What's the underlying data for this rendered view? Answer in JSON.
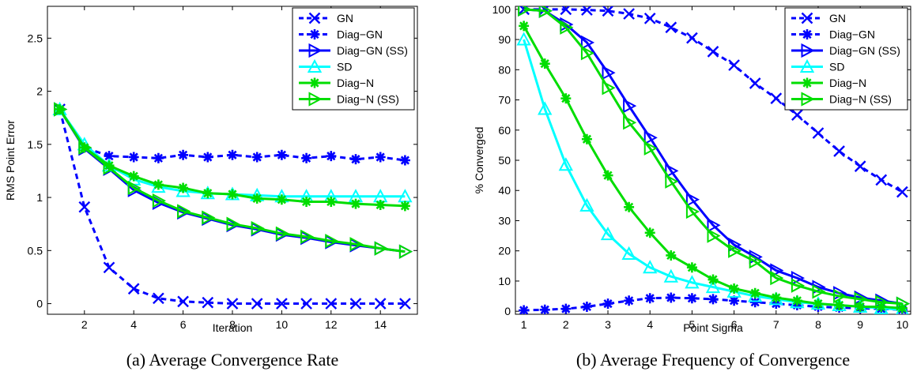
{
  "chart_data": [
    {
      "type": "line",
      "caption": "(a) Average Convergence Rate",
      "xlabel": "Iteration",
      "ylabel": "RMS Point Error",
      "xlim": [
        0.5,
        15.5
      ],
      "ylim": [
        -0.1,
        2.8
      ],
      "xticks": [
        "2",
        "4",
        "6",
        "8",
        "10",
        "12",
        "14"
      ],
      "xtick_values": [
        2,
        4,
        6,
        8,
        10,
        12,
        14
      ],
      "yticks": [
        "0",
        "0.5",
        "1",
        "1.5",
        "2",
        "2.5"
      ],
      "ytick_values": [
        0,
        0.5,
        1,
        1.5,
        2,
        2.5
      ],
      "grid": false,
      "legend_position": "top-right",
      "x": [
        1,
        2,
        3,
        4,
        5,
        6,
        7,
        8,
        9,
        10,
        11,
        12,
        13,
        14,
        15
      ],
      "series": [
        {
          "name": "GN",
          "color": "#0000ff",
          "dash": "dashed",
          "marker": "x",
          "values": [
            1.83,
            0.91,
            0.34,
            0.14,
            0.05,
            0.02,
            0.01,
            0.0,
            0.0,
            0.0,
            0.0,
            0.0,
            0.0,
            0.0,
            0.0
          ]
        },
        {
          "name": "Diag−GN",
          "color": "#0000ff",
          "dash": "dashed",
          "marker": "asterisk",
          "values": [
            1.83,
            1.47,
            1.39,
            1.38,
            1.37,
            1.4,
            1.38,
            1.4,
            1.38,
            1.4,
            1.37,
            1.39,
            1.36,
            1.38,
            1.35
          ]
        },
        {
          "name": "Diag−GN (SS)",
          "color": "#0000ff",
          "dash": "solid",
          "marker": "triangle-right",
          "values": [
            1.83,
            1.46,
            1.27,
            1.07,
            0.95,
            0.86,
            0.8,
            0.74,
            0.7,
            0.65,
            0.62,
            0.58,
            0.55,
            0.52,
            0.49
          ]
        },
        {
          "name": "SD",
          "color": "#00ffff",
          "dash": "solid",
          "marker": "triangle-up",
          "values": [
            1.83,
            1.5,
            1.3,
            1.17,
            1.1,
            1.06,
            1.04,
            1.03,
            1.02,
            1.01,
            1.01,
            1.01,
            1.01,
            1.01,
            1.01
          ]
        },
        {
          "name": "Diag−N",
          "color": "#00dd00",
          "dash": "solid",
          "marker": "asterisk",
          "values": [
            1.83,
            1.47,
            1.3,
            1.2,
            1.12,
            1.09,
            1.04,
            1.03,
            0.99,
            0.98,
            0.96,
            0.96,
            0.94,
            0.93,
            0.92
          ]
        },
        {
          "name": "Diag−N (SS)",
          "color": "#00dd00",
          "dash": "solid",
          "marker": "triangle-right",
          "values": [
            1.83,
            1.47,
            1.28,
            1.09,
            0.97,
            0.87,
            0.81,
            0.75,
            0.71,
            0.66,
            0.63,
            0.59,
            0.56,
            0.52,
            0.49
          ]
        }
      ]
    },
    {
      "type": "line",
      "caption": "(b) Average Frequency of Convergence",
      "xlabel": "Point Sigma",
      "ylabel": "% Converged",
      "xlim": [
        0.8,
        10.2
      ],
      "ylim": [
        -1,
        101
      ],
      "xticks": [
        "1",
        "2",
        "3",
        "4",
        "5",
        "6",
        "7",
        "8",
        "9",
        "10"
      ],
      "xtick_values": [
        1,
        2,
        3,
        4,
        5,
        6,
        7,
        8,
        9,
        10
      ],
      "yticks": [
        "0",
        "10",
        "20",
        "30",
        "40",
        "50",
        "60",
        "70",
        "80",
        "90",
        "100"
      ],
      "ytick_values": [
        0,
        10,
        20,
        30,
        40,
        50,
        60,
        70,
        80,
        90,
        100
      ],
      "grid": false,
      "legend_position": "top-right",
      "x": [
        1,
        1.5,
        2,
        2.5,
        3,
        3.5,
        4,
        4.5,
        5,
        5.5,
        6,
        6.5,
        7,
        7.5,
        8,
        8.5,
        9,
        9.5,
        10
      ],
      "series": [
        {
          "name": "GN",
          "color": "#0000ff",
          "dash": "dashed",
          "marker": "x",
          "values": [
            100,
            100,
            100,
            99.8,
            99.5,
            98.5,
            97,
            94,
            90.5,
            86,
            81.5,
            75.5,
            70.5,
            65,
            59,
            53,
            48,
            43.5,
            39.5
          ]
        },
        {
          "name": "Diag−GN",
          "color": "#0000ff",
          "dash": "dashed",
          "marker": "asterisk",
          "values": [
            0.3,
            0.5,
            0.8,
            1.5,
            2.5,
            3.5,
            4.3,
            4.5,
            4.3,
            4,
            3.5,
            3,
            2.5,
            2,
            1.5,
            1.2,
            1,
            0.8,
            0.5
          ]
        },
        {
          "name": "Diag−GN (SS)",
          "color": "#0000ff",
          "dash": "solid",
          "marker": "triangle-right",
          "values": [
            100,
            99.5,
            95,
            89,
            79,
            68,
            57.5,
            46.5,
            37,
            28.5,
            22,
            18,
            13.5,
            11,
            8,
            6,
            4.5,
            3.5,
            2.5
          ]
        },
        {
          "name": "SD",
          "color": "#00ffff",
          "dash": "solid",
          "marker": "triangle-up",
          "values": [
            90,
            67,
            48.5,
            35,
            25.5,
            19,
            14.5,
            11.5,
            9.5,
            8,
            6.5,
            5,
            4,
            3,
            2.5,
            2,
            1.5,
            1,
            0.5
          ]
        },
        {
          "name": "Diag−N",
          "color": "#00dd00",
          "dash": "solid",
          "marker": "asterisk",
          "values": [
            94.5,
            82,
            70.5,
            57,
            45,
            34.5,
            26,
            18.5,
            14.5,
            10.5,
            7.5,
            6,
            4.5,
            3.5,
            2.5,
            2,
            1.5,
            1.5,
            1
          ]
        },
        {
          "name": "Diag−N (SS)",
          "color": "#00dd00",
          "dash": "solid",
          "marker": "triangle-right",
          "values": [
            100,
            99.5,
            94,
            85.5,
            74,
            62.5,
            54,
            43,
            33,
            25,
            20,
            16.5,
            11,
            8.5,
            6.5,
            5,
            4,
            3,
            2.5
          ]
        }
      ]
    }
  ]
}
